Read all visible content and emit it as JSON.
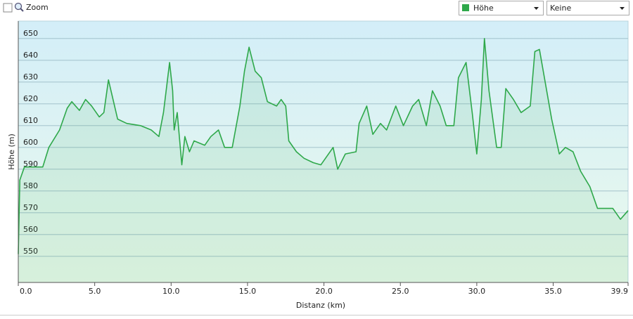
{
  "toolbar": {
    "zoom_label": "Zoom",
    "second_select": "Keine"
  },
  "chart_data": {
    "type": "line",
    "x_label": "Distanz  (km)",
    "y_label": "Höhe (m)",
    "x": [
      0,
      0.1,
      0.4,
      1.6,
      2.0,
      2.7,
      3.2,
      3.5,
      4.0,
      4.4,
      4.8,
      5.3,
      5.6,
      5.9,
      6.2,
      6.5,
      7.1,
      8.0,
      8.7,
      9.2,
      9.5,
      9.9,
      10.1,
      10.2,
      10.4,
      10.6,
      10.7,
      10.9,
      11.2,
      11.5,
      12.2,
      12.6,
      13.1,
      13.5,
      14.0,
      14.5,
      14.8,
      15.1,
      15.5,
      15.9,
      16.3,
      16.9,
      17.2,
      17.5,
      17.7,
      18.2,
      18.7,
      19.3,
      19.8,
      20.2,
      20.6,
      20.9,
      21.4,
      22.1,
      22.3,
      22.8,
      23.2,
      23.7,
      24.1,
      24.7,
      25.2,
      25.8,
      26.2,
      26.7,
      27.1,
      27.6,
      28.0,
      28.5,
      28.8,
      29.3,
      29.7,
      30.0,
      30.3,
      30.5,
      30.8,
      31.3,
      31.6,
      31.9,
      32.4,
      32.9,
      33.5,
      33.8,
      34.1,
      34.5,
      34.9,
      35.4,
      35.8,
      36.3,
      36.8,
      37.4,
      37.9,
      38.4,
      38.9,
      39.4,
      39.9
    ],
    "series": [
      {
        "name": "Höhe",
        "color": "#2ea84a",
        "values": [
          551,
          585,
          591,
          591,
          600,
          608,
          618,
          621,
          617,
          622,
          619,
          614,
          616,
          631,
          622,
          613,
          611,
          610,
          608,
          605,
          616,
          639,
          626,
          608,
          616,
          600,
          592,
          605,
          598,
          603,
          601,
          605,
          608,
          600,
          600,
          619,
          635,
          646,
          635,
          632,
          621,
          619,
          622,
          619,
          603,
          598,
          595,
          593,
          592,
          596,
          600,
          590,
          597,
          598,
          611,
          619,
          606,
          611,
          608,
          619,
          610,
          619,
          622,
          610,
          626,
          619,
          610,
          610,
          632,
          639,
          616,
          597,
          622,
          650,
          626,
          600,
          600,
          627,
          622,
          616,
          619,
          644,
          645,
          629,
          613,
          597,
          600,
          598,
          589,
          582,
          572,
          572,
          572,
          567,
          571
        ]
      }
    ],
    "xlim": [
      0,
      39.9
    ],
    "ylim": [
      538,
      658
    ],
    "xticks": [
      {
        "value": 0,
        "label": "0.0"
      },
      {
        "value": 5,
        "label": "5.0"
      },
      {
        "value": 10,
        "label": "10.0"
      },
      {
        "value": 15,
        "label": "15.0"
      },
      {
        "value": 20,
        "label": "20.0"
      },
      {
        "value": 25,
        "label": "25.0"
      },
      {
        "value": 30,
        "label": "30.0"
      },
      {
        "value": 35,
        "label": "35.0"
      },
      39.9
    ],
    "yticks": [
      550,
      560,
      570,
      580,
      590,
      600,
      610,
      620,
      630,
      640,
      650
    ],
    "grid": true
  }
}
